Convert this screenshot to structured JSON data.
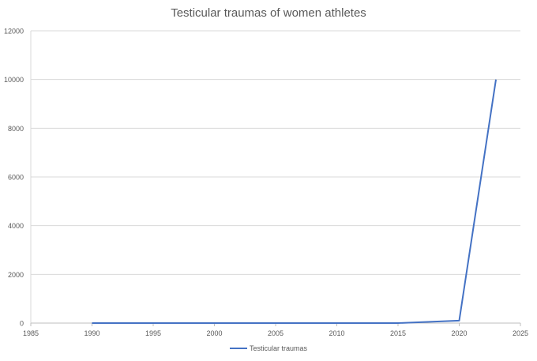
{
  "chart_data": {
    "type": "line",
    "title": "Testicular traumas of women athletes",
    "xlabel": "",
    "ylabel": "",
    "xlim": [
      1985,
      2025
    ],
    "ylim": [
      0,
      12000
    ],
    "xticks": [
      1985,
      1990,
      1995,
      2000,
      2005,
      2010,
      2015,
      2020,
      2025
    ],
    "yticks": [
      0,
      2000,
      4000,
      6000,
      8000,
      10000,
      12000
    ],
    "grid": true,
    "legend": "bottom",
    "series": [
      {
        "name": "Testicular traumas",
        "color": "#4472C4",
        "x": [
          1990,
          1995,
          2000,
          2005,
          2010,
          2015,
          2020,
          2023
        ],
        "y": [
          0,
          0,
          0,
          0,
          0,
          0,
          100,
          10000
        ]
      }
    ]
  }
}
